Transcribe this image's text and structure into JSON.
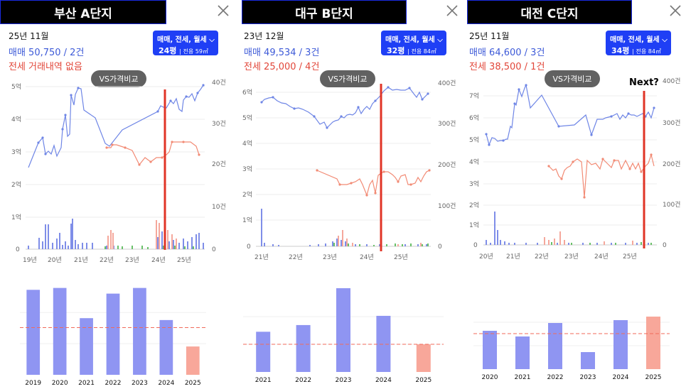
{
  "colors": {
    "sale": "#6f86e6",
    "rent": "#f28b75",
    "marker": "#e03426",
    "count_sale": "#7f8ee8",
    "count_rent": "#f5a89c",
    "count_other": "#69c069",
    "bar_blue": "#8f95f2",
    "bar_pink": "#f8a79a",
    "chip": "#1f3ff5"
  },
  "panels": [
    {
      "title": "부산 A단지",
      "period": "25년 11월",
      "sale_text": "매매 50,750 / 2건",
      "rent_text": "전세 거래내역 없음",
      "filter_label": "매매, 전세, 월세 ",
      "size_main": "24평",
      "size_sub": "전용 59㎡",
      "vs_label": "VS가격비교",
      "left_ticks": [
        "5억",
        "4억",
        "3억",
        "2억",
        "1억",
        "0"
      ],
      "right_ticks": [
        "40건",
        "30건",
        "20건",
        "10건",
        "0"
      ],
      "x_ticks": [
        "19년",
        "20년",
        "21년",
        "22년",
        "23년",
        "24년",
        "25년"
      ],
      "next_label": "",
      "bar_years": [
        "2019",
        "2020",
        "2021",
        "2022",
        "2023",
        "2024",
        "2025"
      ],
      "bar_values": [
        0.9,
        0.92,
        0.6,
        0.86,
        0.92,
        0.58,
        0.3
      ],
      "bar_avg": 0.5
    },
    {
      "title": "대구 B단지",
      "period": "23년 12월",
      "sale_text": "매매 49,534 / 3건",
      "rent_text": "전세 25,000 / 4건",
      "filter_label": "매매, 전세, 월세 ",
      "size_main": "32평",
      "size_sub": "전용 84㎡",
      "vs_label": "VS가격비교",
      "left_ticks": [
        "6억",
        "5억",
        "4억",
        "3억",
        "2억",
        "1억",
        "0"
      ],
      "right_ticks": [
        "400건",
        "300건",
        "200건",
        "100건",
        "0"
      ],
      "x_ticks": [
        "21년",
        "22년",
        "23년",
        "24년",
        "25년"
      ],
      "next_label": "",
      "bar_years": [
        "2021",
        "2022",
        "2023",
        "2024",
        "2025"
      ],
      "bar_values": [
        0.48,
        0.56,
        1.0,
        0.67,
        0.33
      ],
      "bar_avg": 0.33
    },
    {
      "title": "대전 C단지",
      "period": "25년 11월",
      "sale_text": "매매 64,600 / 3건",
      "rent_text": "전세 38,500 / 1건",
      "filter_label": "매매, 전세, 월세 ",
      "size_main": "34평",
      "size_sub": "전용 84㎡",
      "vs_label": "VS가격비교",
      "left_ticks": [
        "7억",
        "6억",
        "5억",
        "4억",
        "3억",
        "2억",
        "1억",
        "0"
      ],
      "right_ticks": [
        "400건",
        "300건",
        "200건",
        "100건",
        "0"
      ],
      "x_ticks": [
        "20년",
        "21년",
        "22년",
        "23년",
        "24년",
        "25년"
      ],
      "next_label": "Next?",
      "bar_years": [
        "2020",
        "2021",
        "2022",
        "2023",
        "2024",
        "2025"
      ],
      "bar_values": [
        0.54,
        0.46,
        0.65,
        0.24,
        0.69,
        0.74
      ],
      "bar_avg": 0.5
    }
  ]
}
